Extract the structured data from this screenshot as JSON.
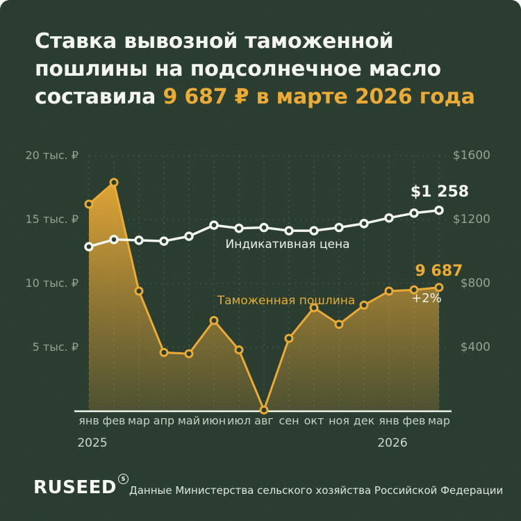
{
  "card": {
    "title": {
      "line1": "Ставка вывозной таможенной",
      "line2": "пошлины на подсолнечное масло",
      "line3_prefix": "составила ",
      "line3_accent": "9 687 ₽ в марте 2026 года"
    },
    "footer": {
      "logo": "RUSEED",
      "logo_mark": "S",
      "source": "Данные Министерства сельского хозяйства Российской Федерации"
    },
    "colors": {
      "background": "#213527",
      "accent_yellow": "#EAA72E",
      "line_white": "#F2F5EE",
      "axis_text": "#8FA08C",
      "month_text": "#C3CFC0"
    }
  },
  "chart_data": {
    "type": "line",
    "title": "Ставка вывозной таможенной пошлины на подсолнечное масло",
    "categories": [
      "янв",
      "фев",
      "мар",
      "апр",
      "май",
      "июн",
      "июл",
      "авг",
      "сен",
      "окт",
      "ноя",
      "дек",
      "янв",
      "фев",
      "мар"
    ],
    "year_markers": [
      {
        "label": "2025",
        "month_index": 0
      },
      {
        "label": "2026",
        "month_index": 12
      }
    ],
    "left_axis": {
      "unit": "тыс. ₽",
      "max": 20000,
      "ticks": [
        {
          "label": "20 тыс. ₽",
          "value": 20000
        },
        {
          "label": "15 тыс. ₽",
          "value": 15000
        },
        {
          "label": "10 тыс. ₽",
          "value": 10000
        },
        {
          "label": "5 тыс. ₽",
          "value": 5000
        }
      ]
    },
    "right_axis": {
      "unit": "$",
      "max": 1600,
      "ticks": [
        {
          "label": "$1600",
          "value": 1600
        },
        {
          "label": "$1200",
          "value": 1200
        },
        {
          "label": "$800",
          "value": 800
        },
        {
          "label": "$400",
          "value": 400
        }
      ]
    },
    "grid": true,
    "legend_position": "inline",
    "series": [
      {
        "name": "Индикативная цена",
        "axis": "right",
        "unit": "USD",
        "color": "#F2F5EE",
        "values": [
          1030,
          1075,
          1070,
          1065,
          1095,
          1165,
          1145,
          1150,
          1130,
          1130,
          1150,
          1175,
          1210,
          1240,
          1258
        ],
        "end_label": "$1 258"
      },
      {
        "name": "Таможенная пошлина",
        "axis": "left",
        "unit": "RUB",
        "color": "#EAA72E",
        "area": true,
        "values": [
          16200,
          17900,
          9400,
          4600,
          4500,
          7100,
          4800,
          100,
          5700,
          8100,
          6800,
          8300,
          9400,
          9500,
          9687
        ],
        "end_label": "9 687",
        "end_sublabel": "+2%"
      }
    ]
  }
}
